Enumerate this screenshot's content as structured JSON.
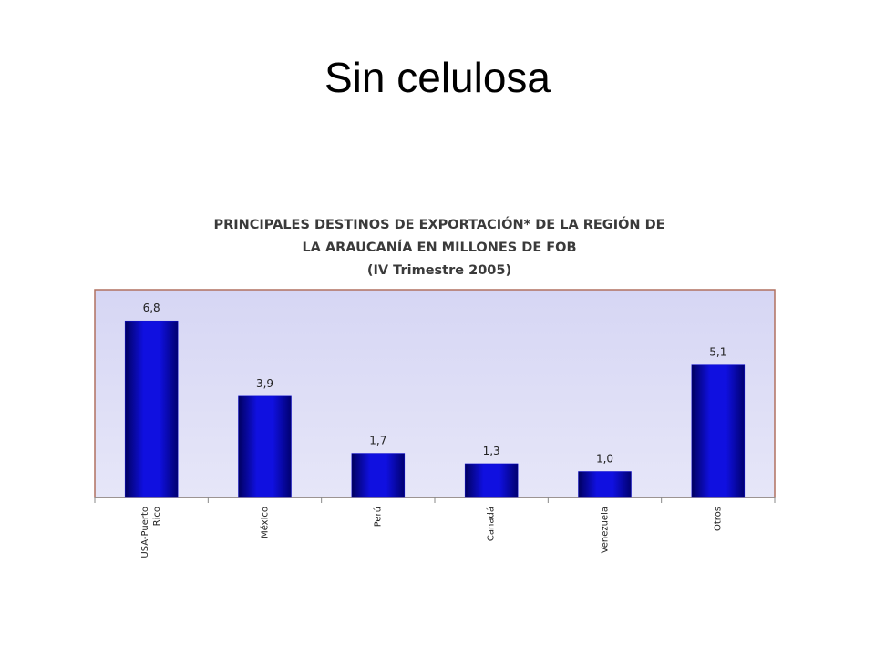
{
  "slide_title": "Sin celulosa",
  "chart_data": {
    "type": "bar",
    "title": [
      "PRINCIPALES DESTINOS  DE EXPORTACIÓN* DE LA REGIÓN DE",
      "LA ARAUCANÍA EN MILLONES DE FOB",
      "(IV Trimestre 2005)"
    ],
    "categories": [
      "USA-Puerto Rico",
      "México",
      "Perú",
      "Canadá",
      "Venezuela",
      "Otros"
    ],
    "values": [
      6.8,
      3.9,
      1.7,
      1.3,
      1.0,
      5.1
    ],
    "value_labels": [
      "6,8",
      "3,9",
      "1,7",
      "1,3",
      "1,0",
      "5,1"
    ],
    "color": "#0a0ad0"
  }
}
